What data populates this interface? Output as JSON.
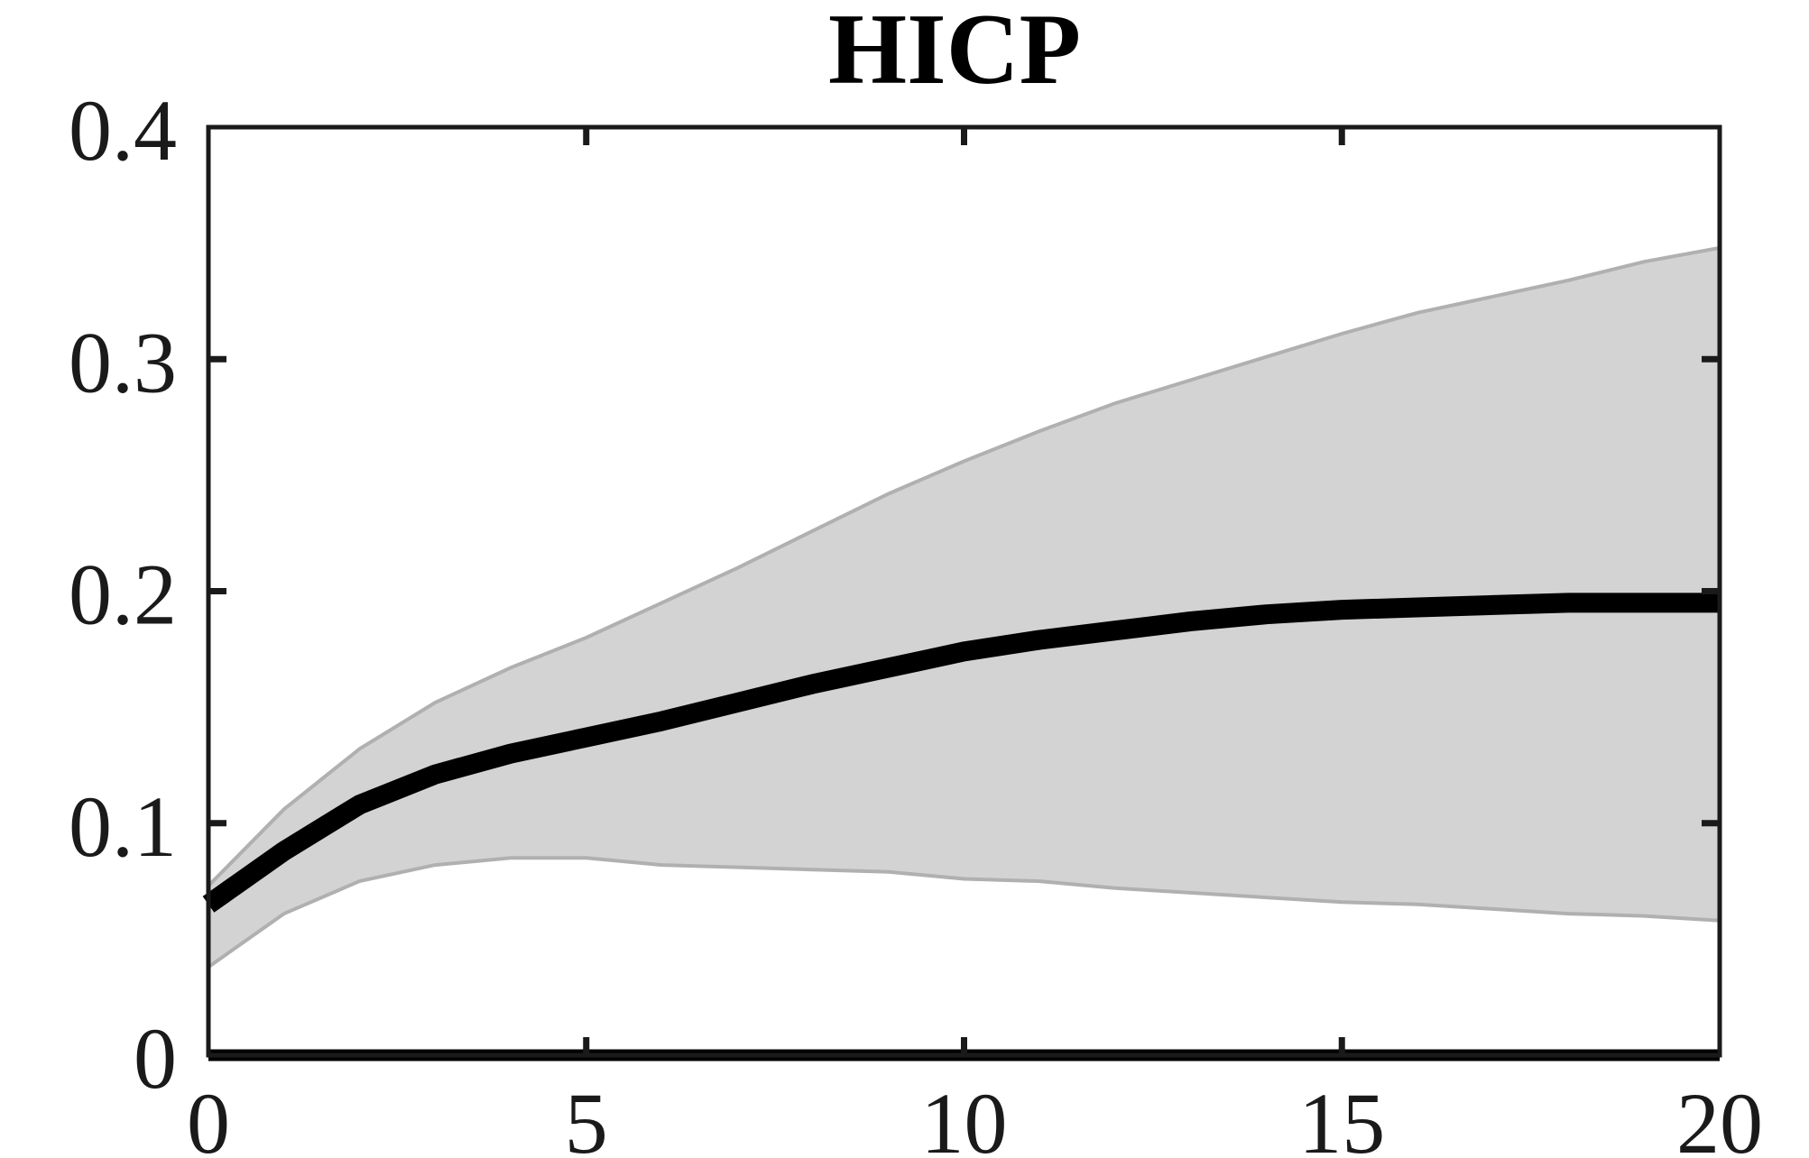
{
  "chart_data": {
    "type": "line",
    "title": "HICP",
    "xlabel": "",
    "ylabel": "",
    "xlim": [
      0,
      20
    ],
    "ylim": [
      0,
      0.4
    ],
    "xticks": [
      0,
      5,
      10,
      15,
      20
    ],
    "yticks": [
      0,
      0.1,
      0.2,
      0.3,
      0.4
    ],
    "xtick_labels": [
      "0",
      "5",
      "10",
      "15",
      "20"
    ],
    "ytick_labels": [
      "0",
      "0.1",
      "0.2",
      "0.3",
      "0.4"
    ],
    "grid": false,
    "x": [
      0,
      1,
      2,
      3,
      4,
      5,
      6,
      7,
      8,
      9,
      10,
      11,
      12,
      13,
      14,
      15,
      16,
      17,
      18,
      19,
      20
    ],
    "series": [
      {
        "role": "median",
        "values": [
          0.065,
          0.088,
          0.108,
          0.121,
          0.13,
          0.137,
          0.144,
          0.152,
          0.16,
          0.167,
          0.174,
          0.179,
          0.183,
          0.187,
          0.19,
          0.192,
          0.193,
          0.194,
          0.195,
          0.195,
          0.195
        ],
        "color": "#000000"
      }
    ],
    "band": {
      "lower": [
        0.038,
        0.061,
        0.075,
        0.082,
        0.085,
        0.085,
        0.082,
        0.081,
        0.08,
        0.079,
        0.076,
        0.075,
        0.072,
        0.07,
        0.068,
        0.066,
        0.065,
        0.063,
        0.061,
        0.06,
        0.058
      ],
      "upper": [
        0.073,
        0.106,
        0.132,
        0.152,
        0.167,
        0.18,
        0.195,
        0.21,
        0.226,
        0.242,
        0.256,
        0.269,
        0.281,
        0.291,
        0.301,
        0.311,
        0.32,
        0.327,
        0.334,
        0.342,
        0.348
      ],
      "fill_color": "#d3d3d3",
      "edge_color": "#b0b0b0"
    },
    "zero_line": true
  }
}
